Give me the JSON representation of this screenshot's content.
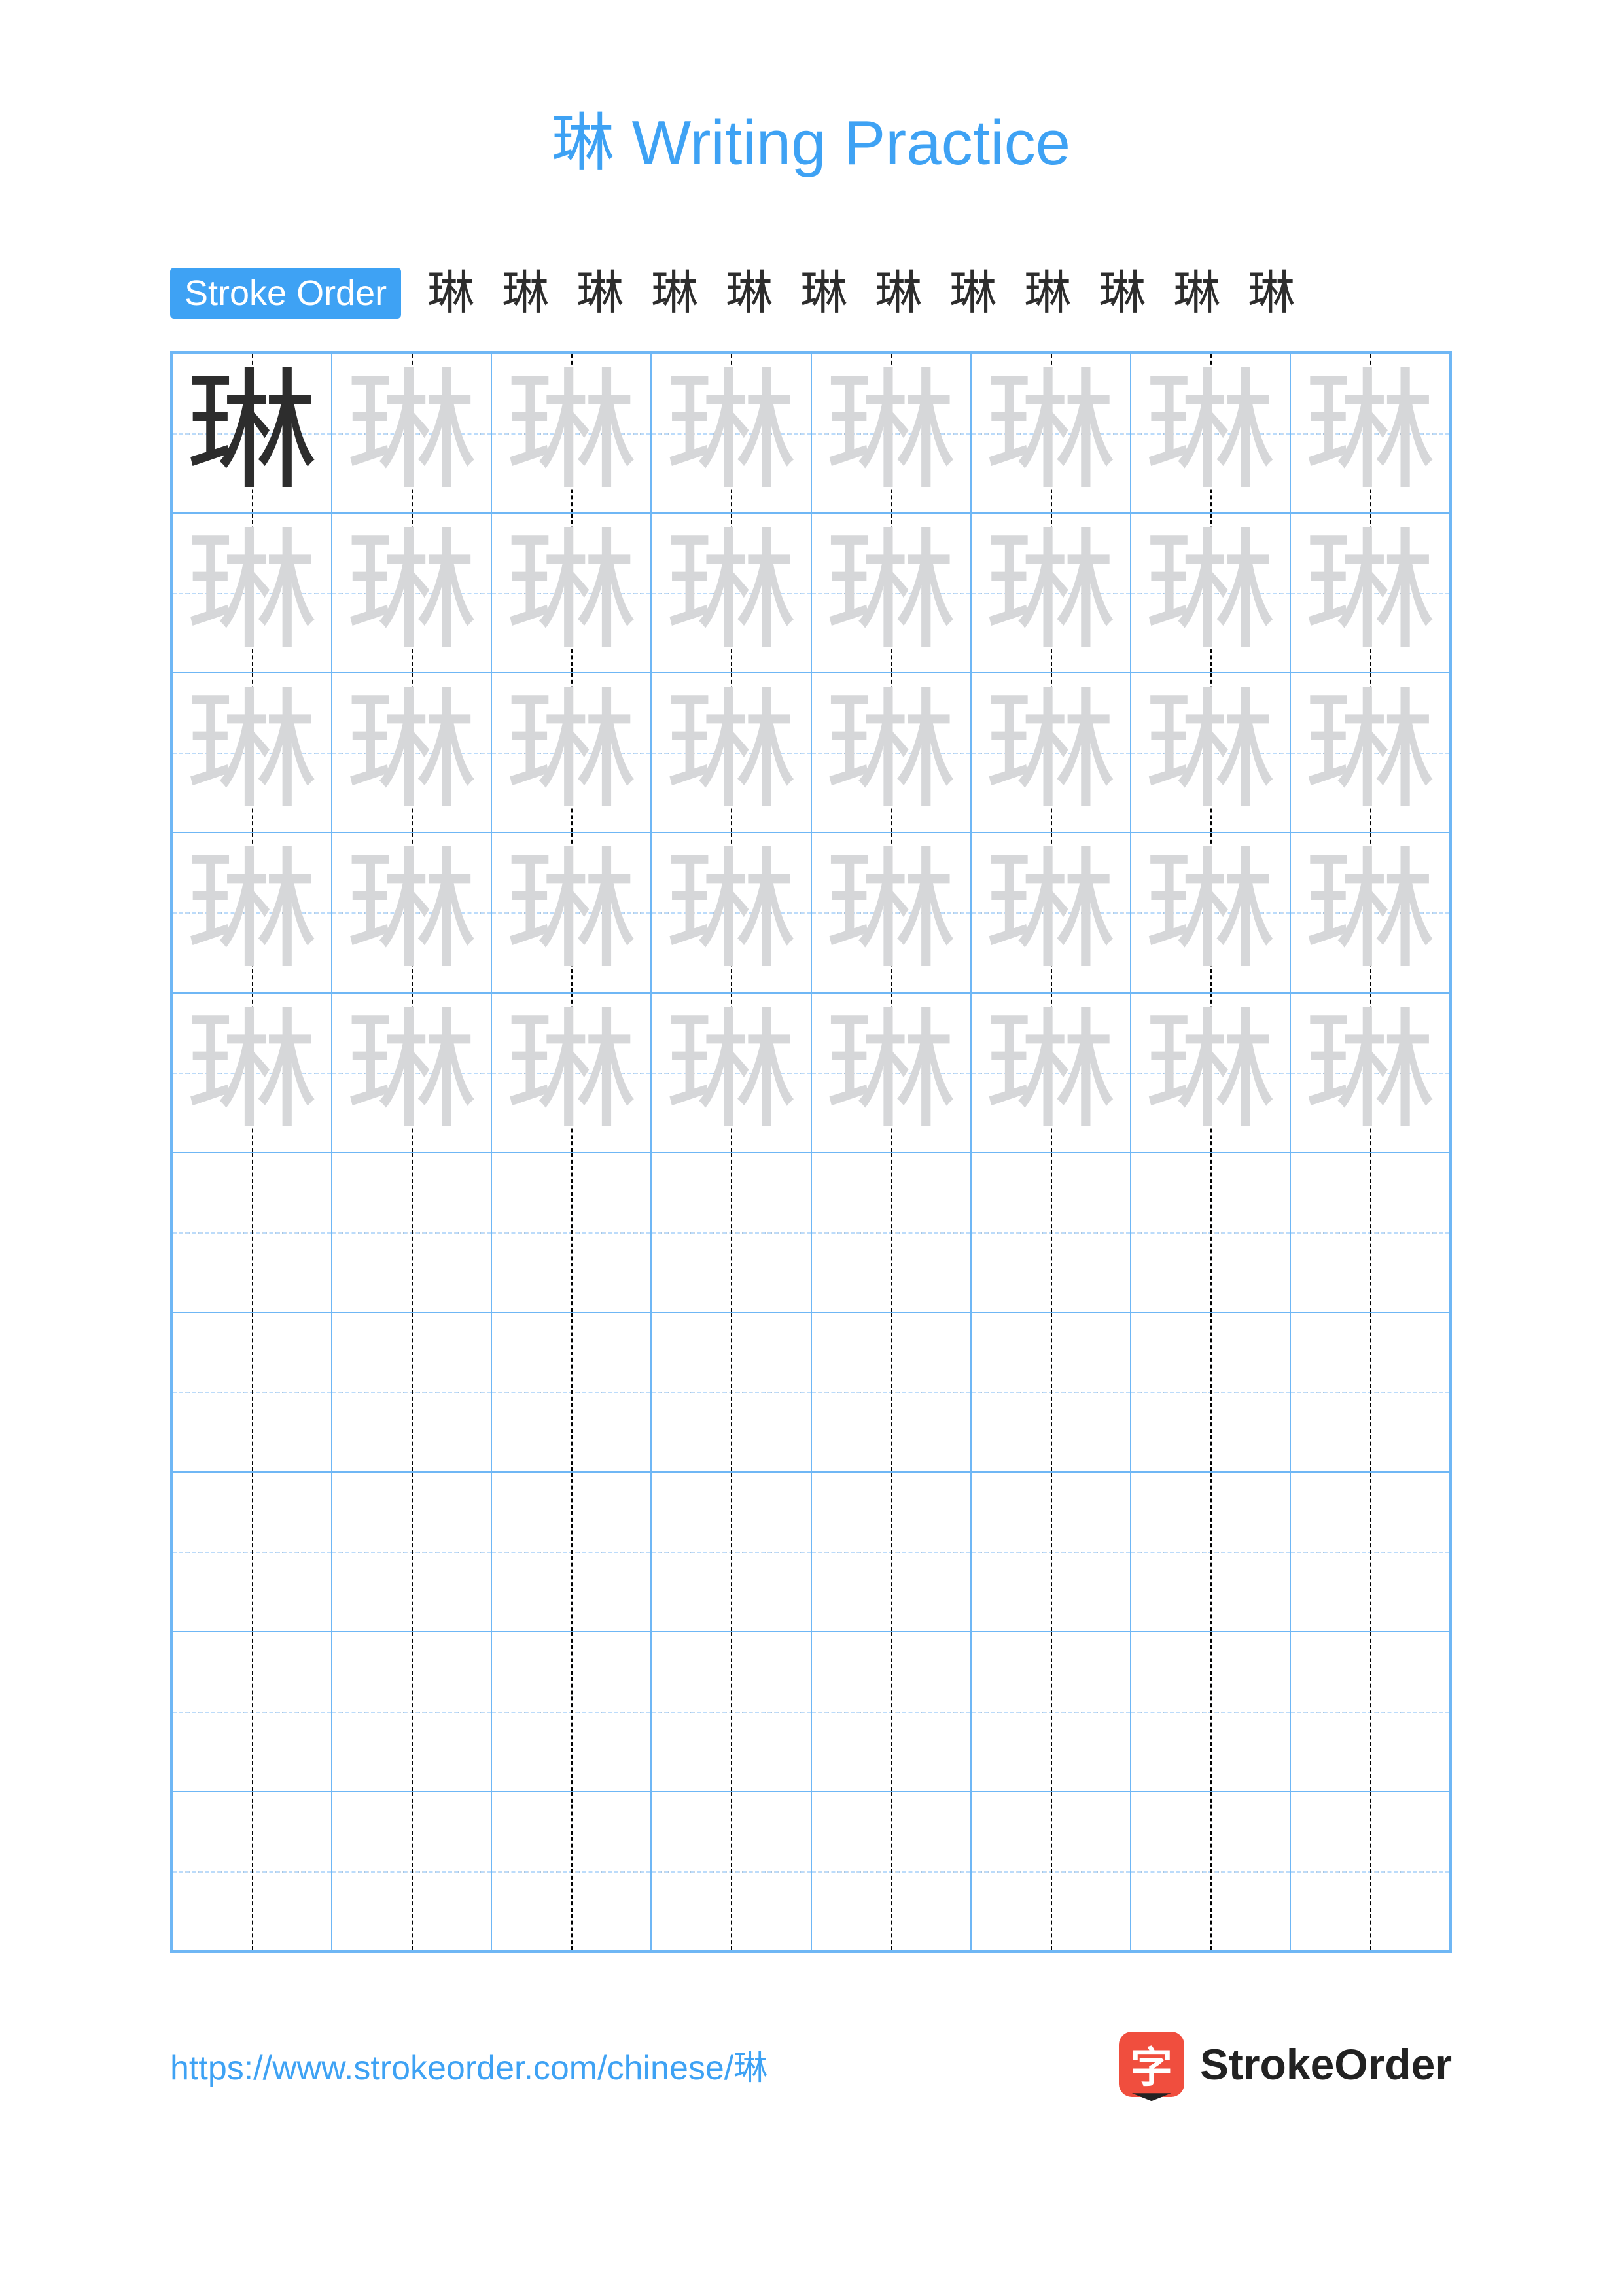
{
  "colors": {
    "accent": "#3ea2f4",
    "grid_border": "#6fb7f5",
    "grid_guide": "#bcdcfb",
    "trace_char": "#d6d7d9",
    "solid_char": "#2d2d2d",
    "title": "#3ea2f4",
    "link": "#3ea2f4",
    "brand_icon_bg": "#f04e3e",
    "brand_text": "#222222",
    "stroke_step": "#2d2d2d"
  },
  "title": "琳 Writing Practice",
  "stroke_order": {
    "label": "Stroke Order",
    "character": "琳",
    "step_count": 12
  },
  "practice_grid": {
    "character": "琳",
    "columns": 8,
    "rows": 10,
    "trace_rows": 5,
    "first_cell_solid": true
  },
  "footer": {
    "url": "https://www.strokeorder.com/chinese/琳",
    "brand_glyph": "字",
    "brand_name": "StrokeOrder"
  }
}
